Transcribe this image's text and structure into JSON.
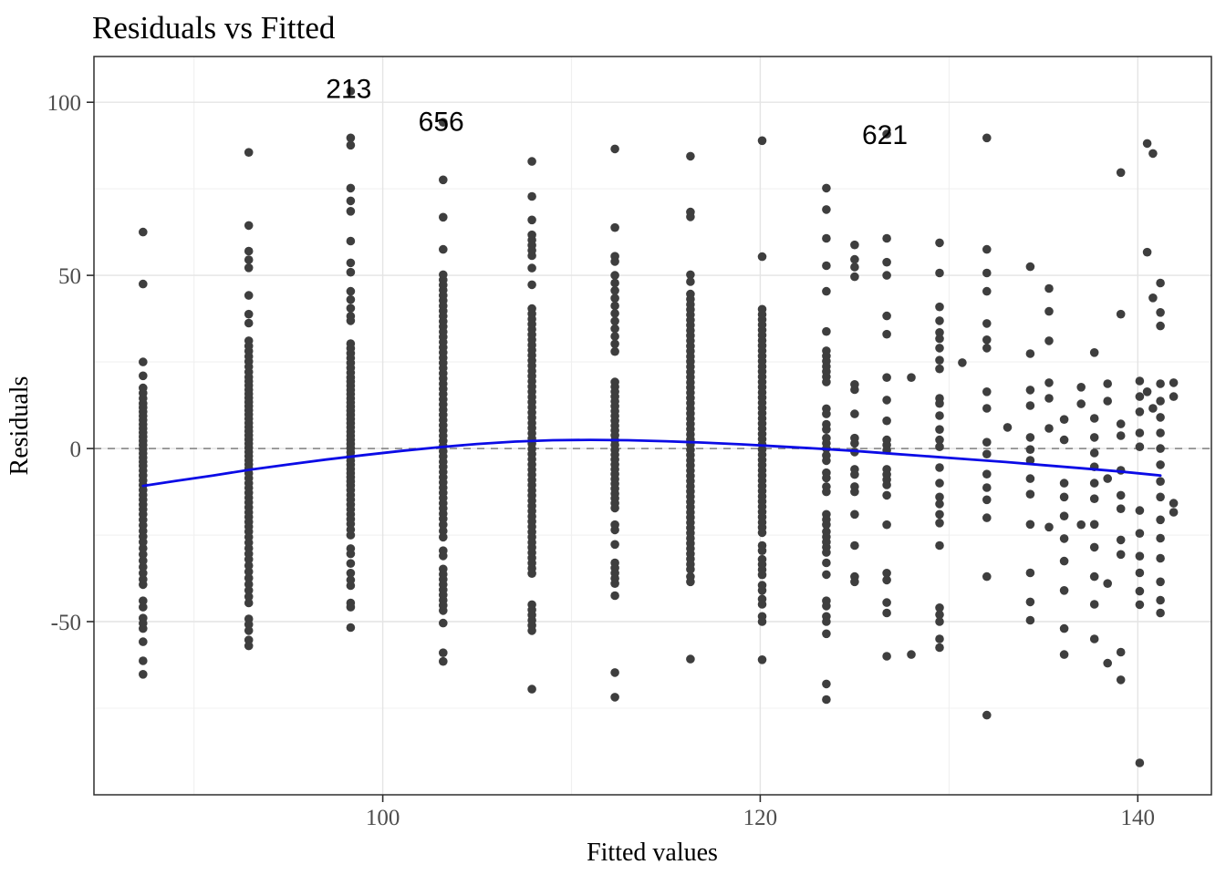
{
  "chart_data": {
    "type": "scatter",
    "title": "Residuals vs Fitted",
    "xlabel": "Fitted values",
    "ylabel": "Residuals",
    "xlim": [
      84.7,
      143.9
    ],
    "ylim": [
      -100,
      113.2
    ],
    "x_ticks": [
      100,
      120,
      140
    ],
    "x_minor_ticks": [
      90,
      110,
      130
    ],
    "y_ticks": [
      100,
      50,
      0,
      -50
    ],
    "y_minor_ticks": [
      75,
      25,
      -25,
      -75
    ],
    "grid": true,
    "legend": "none",
    "colors": {
      "point": "#3E3E3E",
      "smooth_line": "#0B0BE6",
      "zero_line": "#8F8F8F",
      "major_grid": "#E4E4E4",
      "minor_grid": "#F0F0F0",
      "panel_border": "#2E2E2E",
      "tick_text": "#4d4d4d"
    },
    "zero_line_y": 0,
    "point_labels": [
      {
        "text": "213",
        "x": 98.2,
        "y": 103.9
      },
      {
        "text": "656",
        "x": 103.1,
        "y": 94.4
      },
      {
        "text": "621",
        "x": 126.6,
        "y": 90.6
      }
    ],
    "smooth_line": [
      [
        87.3,
        -10.8
      ],
      [
        89,
        -9.4
      ],
      [
        91,
        -7.8
      ],
      [
        93,
        -6.1
      ],
      [
        95,
        -4.6
      ],
      [
        97,
        -3.2
      ],
      [
        99,
        -1.9
      ],
      [
        101,
        -0.7
      ],
      [
        103,
        0.4
      ],
      [
        105,
        1.3
      ],
      [
        107,
        2.0
      ],
      [
        109,
        2.4
      ],
      [
        111,
        2.5
      ],
      [
        113,
        2.4
      ],
      [
        115,
        2.1
      ],
      [
        117,
        1.7
      ],
      [
        119,
        1.2
      ],
      [
        121,
        0.6
      ],
      [
        123,
        0.0
      ],
      [
        125,
        -0.7
      ],
      [
        127,
        -1.5
      ],
      [
        129,
        -2.3
      ],
      [
        131,
        -3.1
      ],
      [
        133,
        -3.9
      ],
      [
        135,
        -4.8
      ],
      [
        137,
        -5.7
      ],
      [
        139,
        -6.6
      ],
      [
        141.2,
        -7.8
      ]
    ],
    "columns": [
      {
        "fitted": 87.3,
        "residuals": [
          62.5,
          47.5,
          25,
          21,
          17.5,
          16,
          14.5,
          13,
          11.8,
          10.6,
          9.4,
          8.2,
          7,
          5.8,
          4.6,
          3.4,
          2.2,
          1,
          -0.2,
          -1.4,
          -2.6,
          -3.8,
          -5,
          -6.4,
          -7.8,
          -9.2,
          -10.6,
          -12,
          -13.4,
          -14.8,
          -16.2,
          -17.6,
          -19,
          -20.6,
          -22.2,
          -23.8,
          -25.4,
          -27,
          -28.8,
          -30.6,
          -32.4,
          -34.2,
          -36,
          -37.8,
          -39.3,
          -44,
          -45.8,
          -49,
          -50.5,
          -52,
          -55.8,
          -61.3,
          -65.2
        ]
      },
      {
        "fitted": 92.9,
        "residuals": [
          85.5,
          64.4,
          57,
          54.5,
          52.2,
          44.2,
          38.8,
          36.2,
          31.1,
          29.6,
          28.1,
          26.6,
          25.1,
          23.6,
          22.1,
          20.6,
          19.4,
          18.2,
          17,
          15.8,
          14.6,
          13.4,
          12.2,
          11,
          9.8,
          8.6,
          7.4,
          6.2,
          5,
          3.8,
          2.6,
          1.4,
          0.2,
          -1,
          -2.2,
          -3.4,
          -4.6,
          -5.8,
          -7.2,
          -8.6,
          -10,
          -11.4,
          -12.8,
          -14.2,
          -15.6,
          -17,
          -18.4,
          -19.8,
          -21.2,
          -22.6,
          -24,
          -25.6,
          -27.2,
          -28.8,
          -30.4,
          -32,
          -33.8,
          -35.6,
          -37.4,
          -39.2,
          -41,
          -42.8,
          -44.6,
          -49.2,
          -50.8,
          -52.6,
          -55.3,
          -57
        ]
      },
      {
        "fitted": 98.3,
        "residuals": [
          103.2,
          89.7,
          87.6,
          75.2,
          71.5,
          68.5,
          59.9,
          53.6,
          50.9,
          45.4,
          43,
          40.5,
          38.2,
          36.9,
          30.3,
          28.9,
          27.5,
          26.1,
          24.7,
          23.3,
          21.9,
          20.5,
          19.3,
          18.1,
          16.9,
          15.7,
          14.5,
          13.3,
          12.1,
          10.9,
          9.7,
          8.5,
          7.3,
          6.1,
          4.9,
          3.7,
          2.5,
          1.3,
          0.1,
          -1.1,
          -2.3,
          -3.5,
          -4.7,
          -5.9,
          -7.1,
          -8.3,
          -9.5,
          -10.7,
          -12,
          -13.4,
          -14.8,
          -16.2,
          -17.6,
          -19,
          -20.4,
          -21.8,
          -23.4,
          -25,
          -28.9,
          -30.4,
          -33.2,
          -36,
          -38,
          -39.6,
          -44.6,
          -45.8,
          -51.7
        ]
      },
      {
        "fitted": 103.2,
        "residuals": [
          94.2,
          77.6,
          66.8,
          57.5,
          50.2,
          48.7,
          47.2,
          45.7,
          44.2,
          42.7,
          41.2,
          39.7,
          38.2,
          36.7,
          35.2,
          33.7,
          32.2,
          30.7,
          29.2,
          27.7,
          26.2,
          24.7,
          23.2,
          21.7,
          20.2,
          18.7,
          17.2,
          15.7,
          14.2,
          12.7,
          11.2,
          9.7,
          8.2,
          6.7,
          5.2,
          3.7,
          2.2,
          0.7,
          -0.8,
          -2.3,
          -3.8,
          -5.3,
          -6.8,
          -8.3,
          -9.8,
          -11.3,
          -12.8,
          -14.3,
          -15.8,
          -17.3,
          -18.8,
          -20.3,
          -22,
          -23.8,
          -25.6,
          -29.5,
          -31,
          -34.8,
          -36.3,
          -37.8,
          -39.3,
          -40.8,
          -42.3,
          -43.8,
          -45.3,
          -46.8,
          -50.4,
          -59,
          -61.5
        ]
      },
      {
        "fitted": 107.9,
        "residuals": [
          82.9,
          72.8,
          66,
          61.7,
          60.2,
          58.7,
          57.2,
          55.7,
          52.1,
          47.3,
          40.4,
          38.9,
          37.4,
          35.9,
          34.4,
          32.9,
          31.4,
          29.9,
          28.4,
          26.9,
          25.4,
          23.9,
          22.4,
          20.9,
          19.4,
          17.9,
          16.4,
          14.9,
          13.4,
          11.9,
          10.4,
          8.9,
          7.4,
          5.9,
          4.4,
          2.9,
          1.4,
          -0.1,
          -1.6,
          -3.1,
          -4.6,
          -6.1,
          -7.6,
          -9.1,
          -10.6,
          -12.1,
          -13.6,
          -15.1,
          -16.6,
          -18.1,
          -19.6,
          -21.1,
          -22.6,
          -24.1,
          -25.6,
          -27.1,
          -28.6,
          -30.1,
          -31.6,
          -33.1,
          -34.6,
          -36.1,
          -45.1,
          -46.6,
          -48.1,
          -49.6,
          -51.1,
          -52.6,
          -69.5
        ]
      },
      {
        "fitted": 112.3,
        "residuals": [
          86.5,
          63.8,
          55.5,
          54,
          50,
          47.8,
          45.6,
          43.4,
          41.2,
          39,
          36.8,
          34.6,
          32.4,
          30.2,
          28,
          19.2,
          17.8,
          16.4,
          15,
          13.6,
          12.2,
          10.8,
          9.4,
          8,
          6.6,
          5.2,
          3.8,
          2.4,
          1,
          -0.4,
          -1.8,
          -3.2,
          -4.6,
          -6,
          -7.4,
          -8.8,
          -10.2,
          -11.6,
          -13,
          -14.4,
          -15.8,
          -17.2,
          -22,
          -23.5,
          -27.7,
          -33,
          -34.5,
          -36,
          -37.5,
          -39,
          -42.5,
          -64.7,
          -71.8
        ]
      },
      {
        "fitted": 116.3,
        "residuals": [
          84.4,
          68.3,
          66.9,
          50.2,
          48.2,
          44.6,
          43.1,
          41.6,
          40.1,
          38.6,
          37.1,
          35.6,
          34.1,
          32.6,
          31.1,
          29.6,
          28.1,
          26.6,
          25.1,
          23.6,
          22.1,
          20.6,
          19.1,
          17.6,
          16.1,
          14.6,
          13.1,
          11.6,
          10.1,
          8.6,
          7.1,
          5.6,
          4.1,
          2.6,
          1.1,
          -0.4,
          -1.9,
          -3.4,
          -4.9,
          -6.4,
          -7.9,
          -9.4,
          -10.9,
          -12.4,
          -13.9,
          -15.4,
          -16.9,
          -18.4,
          -19.9,
          -21.4,
          -22.9,
          -24.4,
          -25.9,
          -27.4,
          -28.9,
          -30.4,
          -31.9,
          -33.4,
          -34.9,
          -37,
          -38.5,
          -60.8
        ]
      },
      {
        "fitted": 120.1,
        "residuals": [
          88.9,
          55.4,
          40.2,
          38.7,
          37.2,
          35.7,
          34.2,
          32.7,
          31.2,
          29.7,
          28.2,
          26.7,
          25.2,
          23.7,
          22.2,
          20.7,
          19.2,
          17.7,
          16.2,
          14.7,
          13.2,
          11.7,
          10.2,
          8.7,
          7.2,
          5.7,
          4.2,
          2.7,
          1.2,
          -0.3,
          -1.8,
          -3.3,
          -4.8,
          -6.3,
          -7.8,
          -9.3,
          -10.8,
          -12.3,
          -13.8,
          -15.3,
          -16.8,
          -18.3,
          -19.8,
          -21.3,
          -22.8,
          -24.3,
          -28,
          -29.5,
          -32,
          -33.5,
          -35,
          -36.5,
          -39.5,
          -41,
          -43.5,
          -45,
          -48.5,
          -50,
          -61
        ]
      },
      {
        "fitted": 123.5,
        "residuals": [
          75.2,
          69,
          60.7,
          52.8,
          45.4,
          33.8,
          28.2,
          26.7,
          25.2,
          23.7,
          22.2,
          20.7,
          19.2,
          11.5,
          10,
          7,
          5.5,
          3,
          1.5,
          0,
          -2,
          -3.5,
          -7,
          -8.5,
          -11,
          -12.5,
          -19,
          -20.5,
          -22,
          -24,
          -25.5,
          -27,
          -28.5,
          -30,
          -33,
          -36.4,
          -44,
          -45.5,
          -48.5,
          -50,
          -53.5,
          -68,
          -72.5
        ]
      },
      {
        "fitted": 125.0,
        "residuals": [
          58.8,
          54.6,
          52.4,
          49.6,
          18.5,
          17,
          10,
          3,
          1.5,
          -1,
          -6,
          -7.5,
          -11,
          -12.5,
          -19,
          -28,
          -37,
          -38.5
        ]
      },
      {
        "fitted": 126.7,
        "residuals": [
          90.8,
          60.7,
          53.8,
          50,
          38.3,
          33,
          20.5,
          14,
          8,
          2.5,
          1,
          -0.5,
          -6,
          -7.5,
          -9,
          -10.5,
          -13.5,
          -22,
          -36,
          -38,
          -44.5,
          -47.5,
          -60
        ]
      },
      {
        "fitted": 128.0,
        "residuals": [
          20.5,
          -59.5
        ]
      },
      {
        "fitted": 129.5,
        "residuals": [
          59.4,
          50.7,
          40.9,
          36.9,
          33.5,
          31.7,
          29,
          25.5,
          23,
          14.5,
          13,
          9.5,
          5.5,
          2.5,
          0.5,
          -5.5,
          -10,
          -14,
          -16,
          -19,
          -21.5,
          -28,
          -46,
          -48,
          -50,
          -55,
          -57.5
        ]
      },
      {
        "fitted": 130.7,
        "residuals": [
          24.8
        ]
      },
      {
        "fitted": 132.0,
        "residuals": [
          89.7,
          57.5,
          50.7,
          45.4,
          36.1,
          31.4,
          29,
          16.4,
          11.6,
          1.8,
          -1.6,
          -7.4,
          -11.3,
          -14.8,
          -20,
          -37,
          -77
        ]
      },
      {
        "fitted": 133.1,
        "residuals": [
          6.1
        ]
      },
      {
        "fitted": 134.3,
        "residuals": [
          52.5,
          27.4,
          16.9,
          12.4,
          3.2,
          -0.3,
          -3.4,
          -8.7,
          -13.2,
          -21.9,
          -35.9,
          -44.3,
          -49.6
        ]
      },
      {
        "fitted": 135.3,
        "residuals": [
          46.2,
          39.6,
          31.1,
          19,
          14.5,
          5.8,
          -22.7
        ]
      },
      {
        "fitted": 136.1,
        "residuals": [
          8.4,
          2.5,
          -10,
          -14,
          -19.5,
          -26,
          -32.5,
          -41,
          -52,
          -59.5
        ]
      },
      {
        "fitted": 137.0,
        "residuals": [
          17.7,
          12.9,
          -22
        ]
      },
      {
        "fitted": 137.7,
        "residuals": [
          27.7,
          8.7,
          3.2,
          -1.3,
          -5.3,
          -10,
          -14.5,
          -21.9,
          -28.5,
          -37,
          -45,
          -55
        ]
      },
      {
        "fitted": 138.4,
        "residuals": [
          18.7,
          13.7,
          -8.7,
          -39,
          -62
        ]
      },
      {
        "fitted": 139.1,
        "residuals": [
          79.7,
          38.8,
          7.1,
          3.7,
          -6.3,
          -13.5,
          -17.4,
          -26.4,
          -30.6,
          -58.8,
          -66.8
        ]
      },
      {
        "fitted": 140.1,
        "residuals": [
          19.5,
          15,
          10.6,
          4.5,
          0.5,
          -17.9,
          -24.5,
          -31.1,
          -35.9,
          -41.2,
          -45.1,
          -90.8
        ]
      },
      {
        "fitted": 140.5,
        "residuals": [
          88.1,
          56.7,
          16.4
        ]
      },
      {
        "fitted": 140.8,
        "residuals": [
          85.2,
          43.5,
          11.6
        ]
      },
      {
        "fitted": 141.2,
        "residuals": [
          47.8,
          39.3,
          35.4,
          18.7,
          13.7,
          9,
          4.5,
          0,
          -4.7,
          -9.5,
          -14,
          -20.6,
          -25.9,
          -31.7,
          -38.5,
          -43.8,
          -47.5
        ]
      },
      {
        "fitted": 141.9,
        "residuals": [
          19,
          15,
          -15.8,
          -18.4
        ]
      }
    ]
  }
}
